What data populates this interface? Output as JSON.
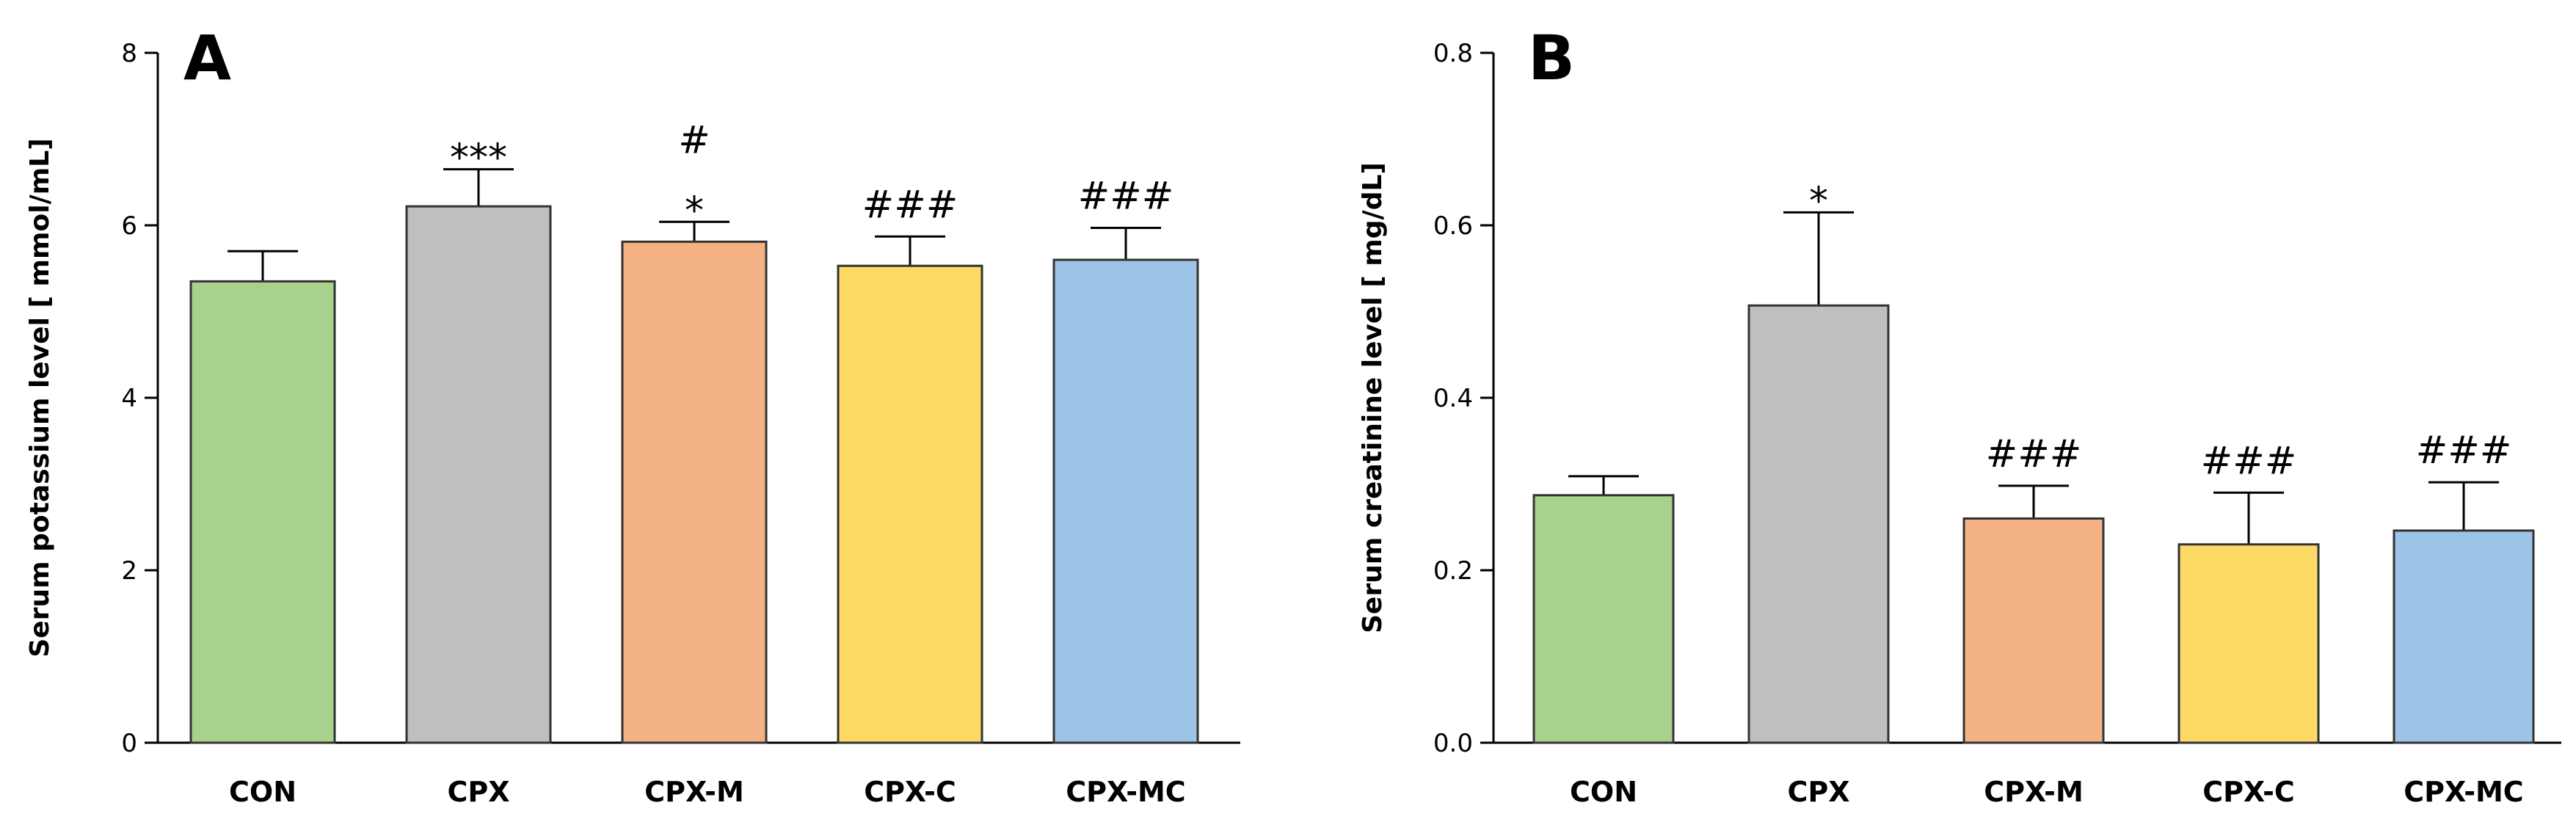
{
  "chart_data": [
    {
      "type": "bar",
      "panel_label": "A",
      "ylabel": "Serum potassium level [ mmol/mL]",
      "categories": [
        "CON",
        "CPX",
        "CPX-M",
        "CPX-C",
        "CPX-MC"
      ],
      "values": [
        5.35,
        6.22,
        5.81,
        5.53,
        5.6
      ],
      "errors": [
        0.35,
        0.43,
        0.23,
        0.34,
        0.37
      ],
      "colors": [
        "#a9d18e",
        "#bfbfbf",
        "#f4b183",
        "#ffd966",
        "#9dc3e6"
      ],
      "annotations": [
        [],
        [
          "***"
        ],
        [
          "*",
          "#"
        ],
        [
          "###"
        ],
        [
          "###"
        ]
      ],
      "ylim": [
        0,
        8
      ],
      "yticks": [
        "0",
        "2",
        "4",
        "6",
        "8"
      ]
    },
    {
      "type": "bar",
      "panel_label": "B",
      "ylabel": "Serum creatinine level [ mg/dL]",
      "categories": [
        "CON",
        "CPX",
        "CPX-M",
        "CPX-C",
        "CPX-MC"
      ],
      "values": [
        0.287,
        0.507,
        0.26,
        0.23,
        0.246
      ],
      "errors": [
        0.022,
        0.108,
        0.038,
        0.06,
        0.056
      ],
      "colors": [
        "#a9d18e",
        "#bfbfbf",
        "#f4b183",
        "#ffd966",
        "#9dc3e6"
      ],
      "annotations": [
        [],
        [
          "*"
        ],
        [
          "###"
        ],
        [
          "###"
        ],
        [
          "###"
        ]
      ],
      "ylim": [
        0,
        0.8
      ],
      "yticks": [
        "0.0",
        "0.2",
        "0.4",
        "0.6",
        "0.8"
      ]
    }
  ]
}
